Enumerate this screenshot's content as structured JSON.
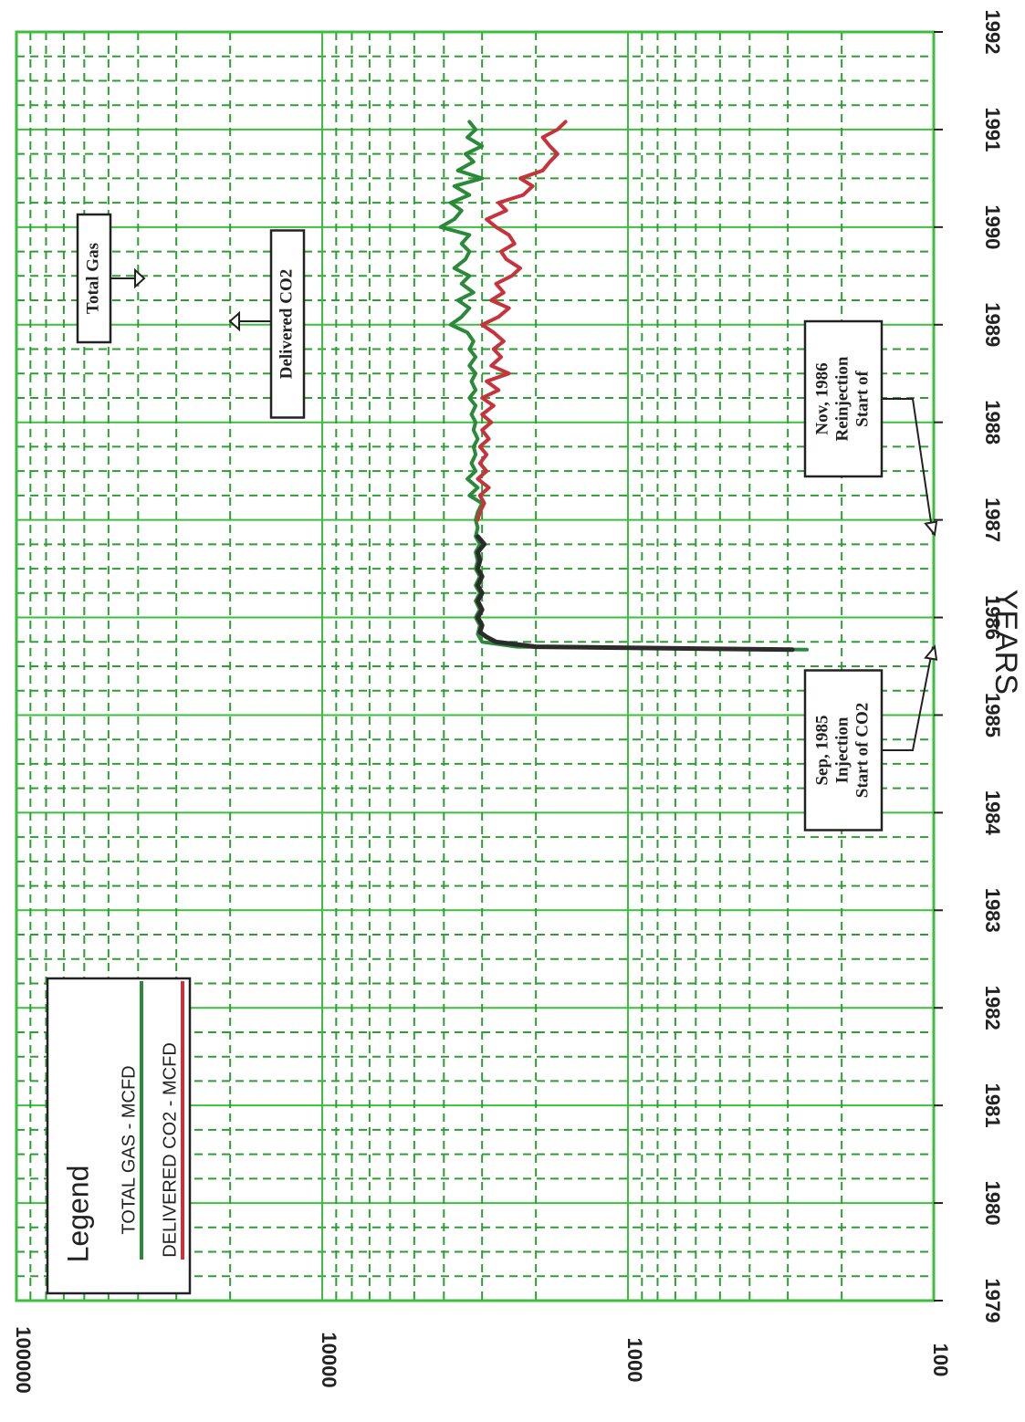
{
  "chart_data": {
    "type": "line",
    "orientation": "rotated 90 degrees clockwise (years run top to bottom, values increase leftward)",
    "xlabel": "YEARS",
    "ylabel": "",
    "x_range": [
      1979,
      1992
    ],
    "x_ticks": [
      "1979",
      "1980",
      "1981",
      "1982",
      "1983",
      "1984",
      "1985",
      "1986",
      "1987",
      "1988",
      "1989",
      "1990",
      "1991",
      "1992"
    ],
    "y_scale": "log",
    "y_range": [
      100,
      100000
    ],
    "y_ticks": [
      "100",
      "1000",
      "10000",
      "100000"
    ],
    "grid": true,
    "legend": {
      "title": "Legend",
      "placement": "bottom-left of printed page",
      "entries": [
        {
          "label": "TOTAL GAS - MCFD",
          "color": "#2a8a3a"
        },
        {
          "label": "DELIVERED CO2 - MCFD",
          "color": "#c8323c"
        }
      ]
    },
    "series": [
      {
        "name": "TOTAL GAS - MCFD",
        "color": "#2a8a3a",
        "points": [
          [
            1985.67,
            260
          ],
          [
            1985.7,
            2300
          ],
          [
            1985.75,
            3000
          ],
          [
            1985.83,
            3100
          ],
          [
            1985.92,
            3050
          ],
          [
            1986.0,
            3150
          ],
          [
            1986.08,
            3050
          ],
          [
            1986.17,
            3150
          ],
          [
            1986.25,
            3050
          ],
          [
            1986.33,
            3150
          ],
          [
            1986.42,
            3050
          ],
          [
            1986.5,
            3150
          ],
          [
            1986.58,
            3100
          ],
          [
            1986.67,
            3150
          ],
          [
            1986.75,
            3050
          ],
          [
            1986.83,
            3150
          ],
          [
            1986.92,
            3100
          ],
          [
            1987.0,
            3150
          ],
          [
            1987.08,
            3100
          ],
          [
            1987.17,
            3000
          ],
          [
            1987.25,
            3300
          ],
          [
            1987.33,
            3100
          ],
          [
            1987.42,
            3350
          ],
          [
            1987.5,
            3150
          ],
          [
            1987.58,
            3250
          ],
          [
            1987.67,
            3150
          ],
          [
            1987.75,
            3200
          ],
          [
            1987.83,
            3100
          ],
          [
            1987.92,
            3200
          ],
          [
            1988.0,
            3150
          ],
          [
            1988.08,
            3250
          ],
          [
            1988.17,
            3150
          ],
          [
            1988.25,
            3300
          ],
          [
            1988.33,
            3150
          ],
          [
            1988.42,
            3250
          ],
          [
            1988.5,
            3150
          ],
          [
            1988.58,
            3300
          ],
          [
            1988.67,
            3150
          ],
          [
            1988.75,
            3300
          ],
          [
            1988.83,
            3200
          ],
          [
            1988.92,
            3350
          ],
          [
            1989.0,
            3800
          ],
          [
            1989.08,
            3500
          ],
          [
            1989.17,
            3300
          ],
          [
            1989.25,
            3600
          ],
          [
            1989.33,
            3200
          ],
          [
            1989.42,
            3500
          ],
          [
            1989.5,
            3300
          ],
          [
            1989.58,
            3700
          ],
          [
            1989.67,
            3400
          ],
          [
            1989.75,
            3300
          ],
          [
            1989.83,
            3500
          ],
          [
            1989.92,
            3300
          ],
          [
            1990.0,
            4100
          ],
          [
            1990.08,
            3700
          ],
          [
            1990.17,
            3500
          ],
          [
            1990.25,
            3800
          ],
          [
            1990.33,
            3300
          ],
          [
            1990.42,
            3700
          ],
          [
            1990.5,
            3000
          ],
          [
            1990.58,
            3600
          ],
          [
            1990.67,
            3200
          ],
          [
            1990.75,
            3400
          ],
          [
            1990.83,
            3000
          ],
          [
            1990.92,
            3350
          ],
          [
            1991.0,
            3150
          ],
          [
            1991.08,
            3300
          ]
        ]
      },
      {
        "name": "DELIVERED CO2 - MCFD",
        "color": "#c8323c",
        "points": [
          [
            1987.0,
            3100
          ],
          [
            1987.08,
            3050
          ],
          [
            1987.17,
            2950
          ],
          [
            1987.25,
            3050
          ],
          [
            1987.33,
            2850
          ],
          [
            1987.42,
            3100
          ],
          [
            1987.5,
            2900
          ],
          [
            1987.58,
            3050
          ],
          [
            1987.67,
            2900
          ],
          [
            1987.75,
            3050
          ],
          [
            1987.83,
            2850
          ],
          [
            1987.92,
            3000
          ],
          [
            1988.0,
            2800
          ],
          [
            1988.08,
            3000
          ],
          [
            1988.17,
            2750
          ],
          [
            1988.25,
            3000
          ],
          [
            1988.33,
            2650
          ],
          [
            1988.42,
            2900
          ],
          [
            1988.5,
            2450
          ],
          [
            1988.58,
            2800
          ],
          [
            1988.67,
            2600
          ],
          [
            1988.75,
            2750
          ],
          [
            1988.83,
            2550
          ],
          [
            1988.92,
            2750
          ],
          [
            1989.0,
            3000
          ],
          [
            1989.08,
            2650
          ],
          [
            1989.17,
            2450
          ],
          [
            1989.25,
            2800
          ],
          [
            1989.33,
            2550
          ],
          [
            1989.42,
            2700
          ],
          [
            1989.5,
            2400
          ],
          [
            1989.58,
            2250
          ],
          [
            1989.67,
            2500
          ],
          [
            1989.75,
            2600
          ],
          [
            1989.83,
            2350
          ],
          [
            1989.92,
            2450
          ],
          [
            1990.0,
            2700
          ],
          [
            1990.08,
            2900
          ],
          [
            1990.17,
            2500
          ],
          [
            1990.25,
            2650
          ],
          [
            1990.33,
            2200
          ],
          [
            1990.42,
            2050
          ],
          [
            1990.5,
            2250
          ],
          [
            1990.58,
            1900
          ],
          [
            1990.67,
            1800
          ],
          [
            1990.75,
            1700
          ],
          [
            1990.83,
            1800
          ],
          [
            1990.92,
            1900
          ],
          [
            1991.0,
            1700
          ],
          [
            1991.08,
            1600
          ]
        ]
      },
      {
        "name": "",
        "color": "#2b2b2b",
        "points": [
          [
            1985.67,
            290
          ],
          [
            1985.7,
            2000
          ],
          [
            1985.75,
            2700
          ],
          [
            1985.8,
            2900
          ],
          [
            1985.85,
            3050
          ],
          [
            1985.92,
            3000
          ],
          [
            1986.0,
            3100
          ],
          [
            1986.08,
            3000
          ],
          [
            1986.17,
            3100
          ],
          [
            1986.25,
            3000
          ],
          [
            1986.33,
            3100
          ],
          [
            1986.42,
            3000
          ],
          [
            1986.5,
            3100
          ],
          [
            1986.58,
            3050
          ],
          [
            1986.67,
            3100
          ],
          [
            1986.75,
            2950
          ],
          [
            1986.83,
            3100
          ]
        ]
      }
    ],
    "annotations": [
      {
        "lines": [
          "Total Gas"
        ]
      },
      {
        "lines": [
          "Delivered CO2"
        ]
      },
      {
        "lines": [
          "Start of",
          "Reinjection",
          "Nov, 1986"
        ]
      },
      {
        "lines": [
          "Start of CO2",
          "Injection",
          "Sep, 1985"
        ]
      }
    ]
  }
}
